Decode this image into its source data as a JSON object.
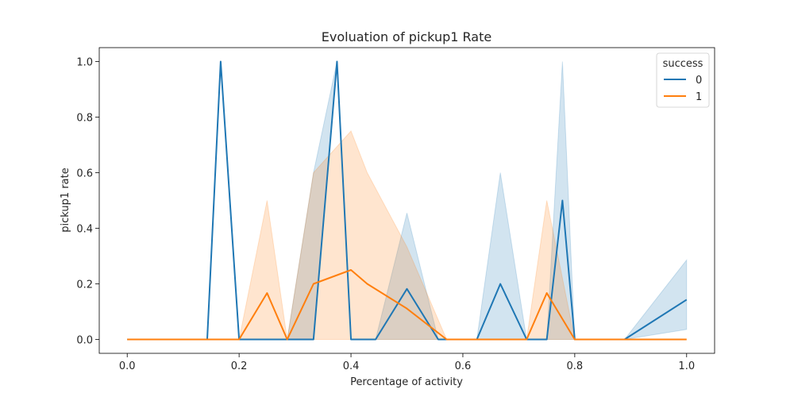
{
  "chart_data": {
    "type": "line",
    "title": "Evoluation of pickup1 Rate",
    "xlabel": "Percentage of activity",
    "ylabel": "pickup1 rate",
    "xlim": [
      -0.05,
      1.05
    ],
    "ylim": [
      -0.05,
      1.05
    ],
    "xticks": [
      0.0,
      0.2,
      0.4,
      0.6,
      0.8,
      1.0
    ],
    "xtick_labels": [
      "0.0",
      "0.2",
      "0.4",
      "0.6",
      "0.8",
      "1.0"
    ],
    "yticks": [
      0.0,
      0.2,
      0.4,
      0.6,
      0.8,
      1.0
    ],
    "ytick_labels": [
      "0.0",
      "0.2",
      "0.4",
      "0.6",
      "0.8",
      "1.0"
    ],
    "grid": false,
    "legend": {
      "title": "success",
      "placement": "top-right"
    },
    "series": [
      {
        "name": "0",
        "color": "#1f77b4",
        "x": [
          0.0,
          0.143,
          0.167,
          0.2,
          0.286,
          0.333,
          0.375,
          0.4,
          0.444,
          0.5,
          0.556,
          0.6,
          0.625,
          0.667,
          0.714,
          0.75,
          0.778,
          0.8,
          0.889,
          1.0
        ],
        "y": [
          0.0,
          0.0,
          1.0,
          0.0,
          0.0,
          0.0,
          1.0,
          0.0,
          0.0,
          0.182,
          0.0,
          0.0,
          0.0,
          0.2,
          0.0,
          0.0,
          0.5,
          0.0,
          0.0,
          0.143
        ],
        "lower": [
          0.0,
          0.0,
          1.0,
          0.0,
          0.0,
          0.0,
          1.0,
          0.0,
          0.0,
          0.0,
          0.0,
          0.0,
          0.0,
          0.0,
          0.0,
          0.0,
          0.0,
          0.0,
          0.0,
          0.036
        ],
        "upper": [
          0.0,
          0.0,
          1.0,
          0.0,
          0.0,
          0.6,
          1.0,
          0.0,
          0.0,
          0.455,
          0.0,
          0.0,
          0.0,
          0.6,
          0.0,
          0.0,
          1.0,
          0.0,
          0.0,
          0.286
        ]
      },
      {
        "name": "1",
        "color": "#ff7f0e",
        "x": [
          0.0,
          0.2,
          0.25,
          0.286,
          0.333,
          0.4,
          0.429,
          0.5,
          0.571,
          0.6,
          0.714,
          0.75,
          0.8,
          1.0
        ],
        "y": [
          0.0,
          0.0,
          0.167,
          0.0,
          0.2,
          0.25,
          0.2,
          0.111,
          0.0,
          0.0,
          0.0,
          0.167,
          0.0,
          0.0
        ],
        "lower": [
          0.0,
          0.0,
          0.0,
          0.0,
          0.0,
          0.0,
          0.0,
          0.0,
          0.0,
          0.0,
          0.0,
          0.0,
          0.0,
          0.0
        ],
        "upper": [
          0.0,
          0.0,
          0.5,
          0.0,
          0.6,
          0.75,
          0.6,
          0.333,
          0.0,
          0.0,
          0.0,
          0.5,
          0.0,
          0.0
        ]
      }
    ]
  }
}
